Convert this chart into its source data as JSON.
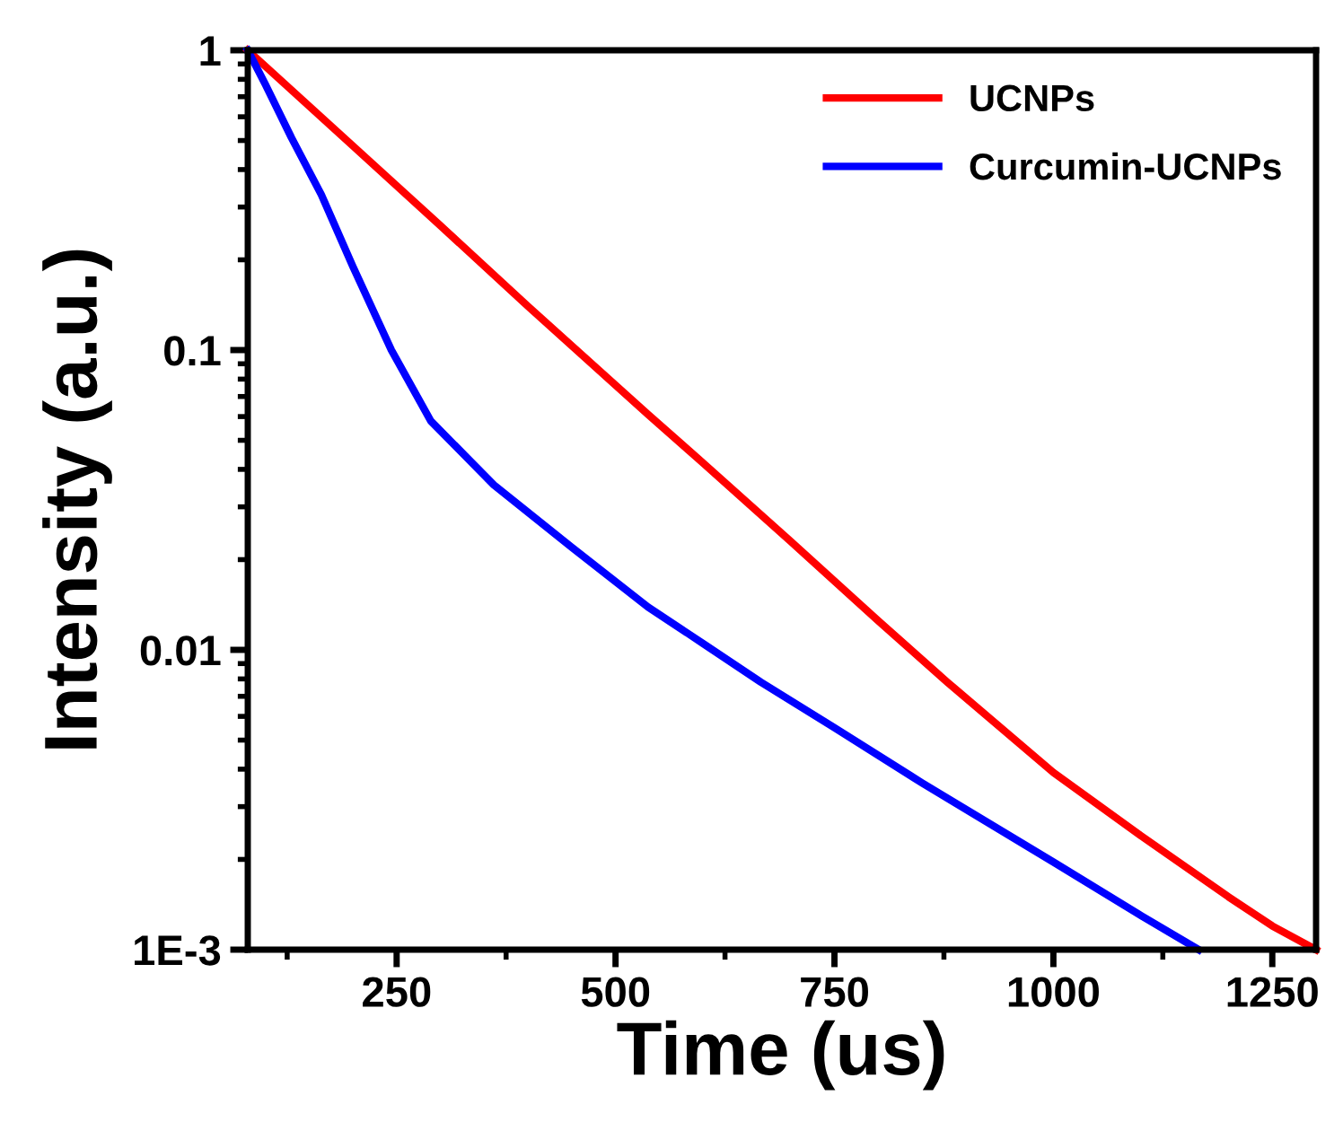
{
  "chart_data": {
    "type": "line",
    "xlabel": "Time (us)",
    "ylabel": "Intensity (a.u.)",
    "log": "y",
    "xlim": [
      80,
      1300
    ],
    "xticks": [
      250,
      500,
      750,
      1000,
      1250
    ],
    "ylim": [
      0.001,
      1
    ],
    "yticks": [
      {
        "value": 0.001,
        "label": "1E-3"
      },
      0.01,
      0.1,
      1
    ],
    "legend": "top right",
    "grid": false,
    "series": [
      {
        "name": "UCNPs",
        "color": "#ff0000",
        "x": [
          80,
          200,
          300,
          400,
          537,
          600,
          700,
          800,
          879,
          1000,
          1100,
          1200,
          1250,
          1300
        ],
        "values": [
          1,
          0.48,
          0.26,
          0.14,
          0.061,
          0.042,
          0.023,
          0.0125,
          0.0078,
          0.0039,
          0.0024,
          0.0015,
          0.0012,
          0.001
        ]
      },
      {
        "name": "Curcumin-UCNPs",
        "color": "#0000ff",
        "x": [
          80,
          100,
          130,
          164,
          200,
          244,
          289,
          361,
          450,
          537,
          600,
          666,
          750,
          850,
          1000,
          1100,
          1166
        ],
        "values": [
          1,
          0.77,
          0.51,
          0.33,
          0.19,
          0.1,
          0.058,
          0.0355,
          0.022,
          0.0139,
          0.0105,
          0.0078,
          0.0055,
          0.0036,
          0.00196,
          0.0013,
          0.001
        ]
      }
    ]
  }
}
